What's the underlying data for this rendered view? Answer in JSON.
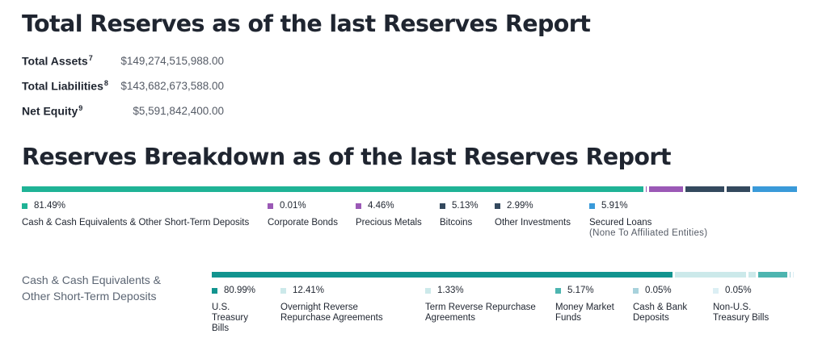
{
  "totals": {
    "title": "Total Reserves as of the last Reserves Report",
    "rows": [
      {
        "label": "Total Assets",
        "sup": "7",
        "value": "$149,274,515,988.00"
      },
      {
        "label": "Total Liabilities",
        "sup": "8",
        "value": "$143,682,673,588.00"
      },
      {
        "label": "Net Equity",
        "sup": "9",
        "value": "$5,591,842,400.00"
      }
    ]
  },
  "breakdown": {
    "title": "Reserves Breakdown as of the last Reserves Report",
    "items": [
      {
        "pct": "81.49%",
        "name": "Cash & Cash Equivalents & Other Short-Term Deposits",
        "value": 81.49,
        "color": "#1fb396"
      },
      {
        "pct": "0.01%",
        "name": "Corporate Bonds",
        "value": 0.01,
        "color": "#9b59b6"
      },
      {
        "pct": "4.46%",
        "name": "Precious Metals",
        "value": 4.46,
        "color": "#9b59b6"
      },
      {
        "pct": "5.13%",
        "name": "Bitcoins",
        "value": 5.13,
        "color": "#34495e"
      },
      {
        "pct": "2.99%",
        "name": "Other Investments",
        "value": 2.99,
        "color": "#34495e"
      },
      {
        "pct": "5.91%",
        "name": "Secured Loans",
        "note": "(None To Affiliated Entities)",
        "value": 5.91,
        "color": "#3a9ad9"
      }
    ]
  },
  "cash": {
    "label_line1": "Cash & Cash Equivalents &",
    "label_line2": "Other Short-Term Deposits",
    "items": [
      {
        "pct": "80.99%",
        "name_lines": [
          "U.S.",
          "Treasury",
          "Bills"
        ],
        "value": 80.99,
        "color": "#12948f"
      },
      {
        "pct": "12.41%",
        "name_lines": [
          "Overnight Reverse",
          "Repurchase Agreements"
        ],
        "value": 12.41,
        "color": "#cce9ea"
      },
      {
        "pct": "1.33%",
        "name_lines": [
          "Term Reverse Repurchase",
          "Agreements"
        ],
        "value": 1.33,
        "color": "#cce9ea"
      },
      {
        "pct": "5.17%",
        "name_lines": [
          "Money Market",
          "Funds"
        ],
        "value": 5.17,
        "color": "#4db5b0"
      },
      {
        "pct": "0.05%",
        "name_lines": [
          "Cash & Bank",
          "Deposits"
        ],
        "value": 0.05,
        "color": "#a8d2dc"
      },
      {
        "pct": "0.05%",
        "name_lines": [
          "Non-U.S.",
          "Treasury Bills"
        ],
        "value": 0.05,
        "color": "#dceff4"
      }
    ]
  }
}
